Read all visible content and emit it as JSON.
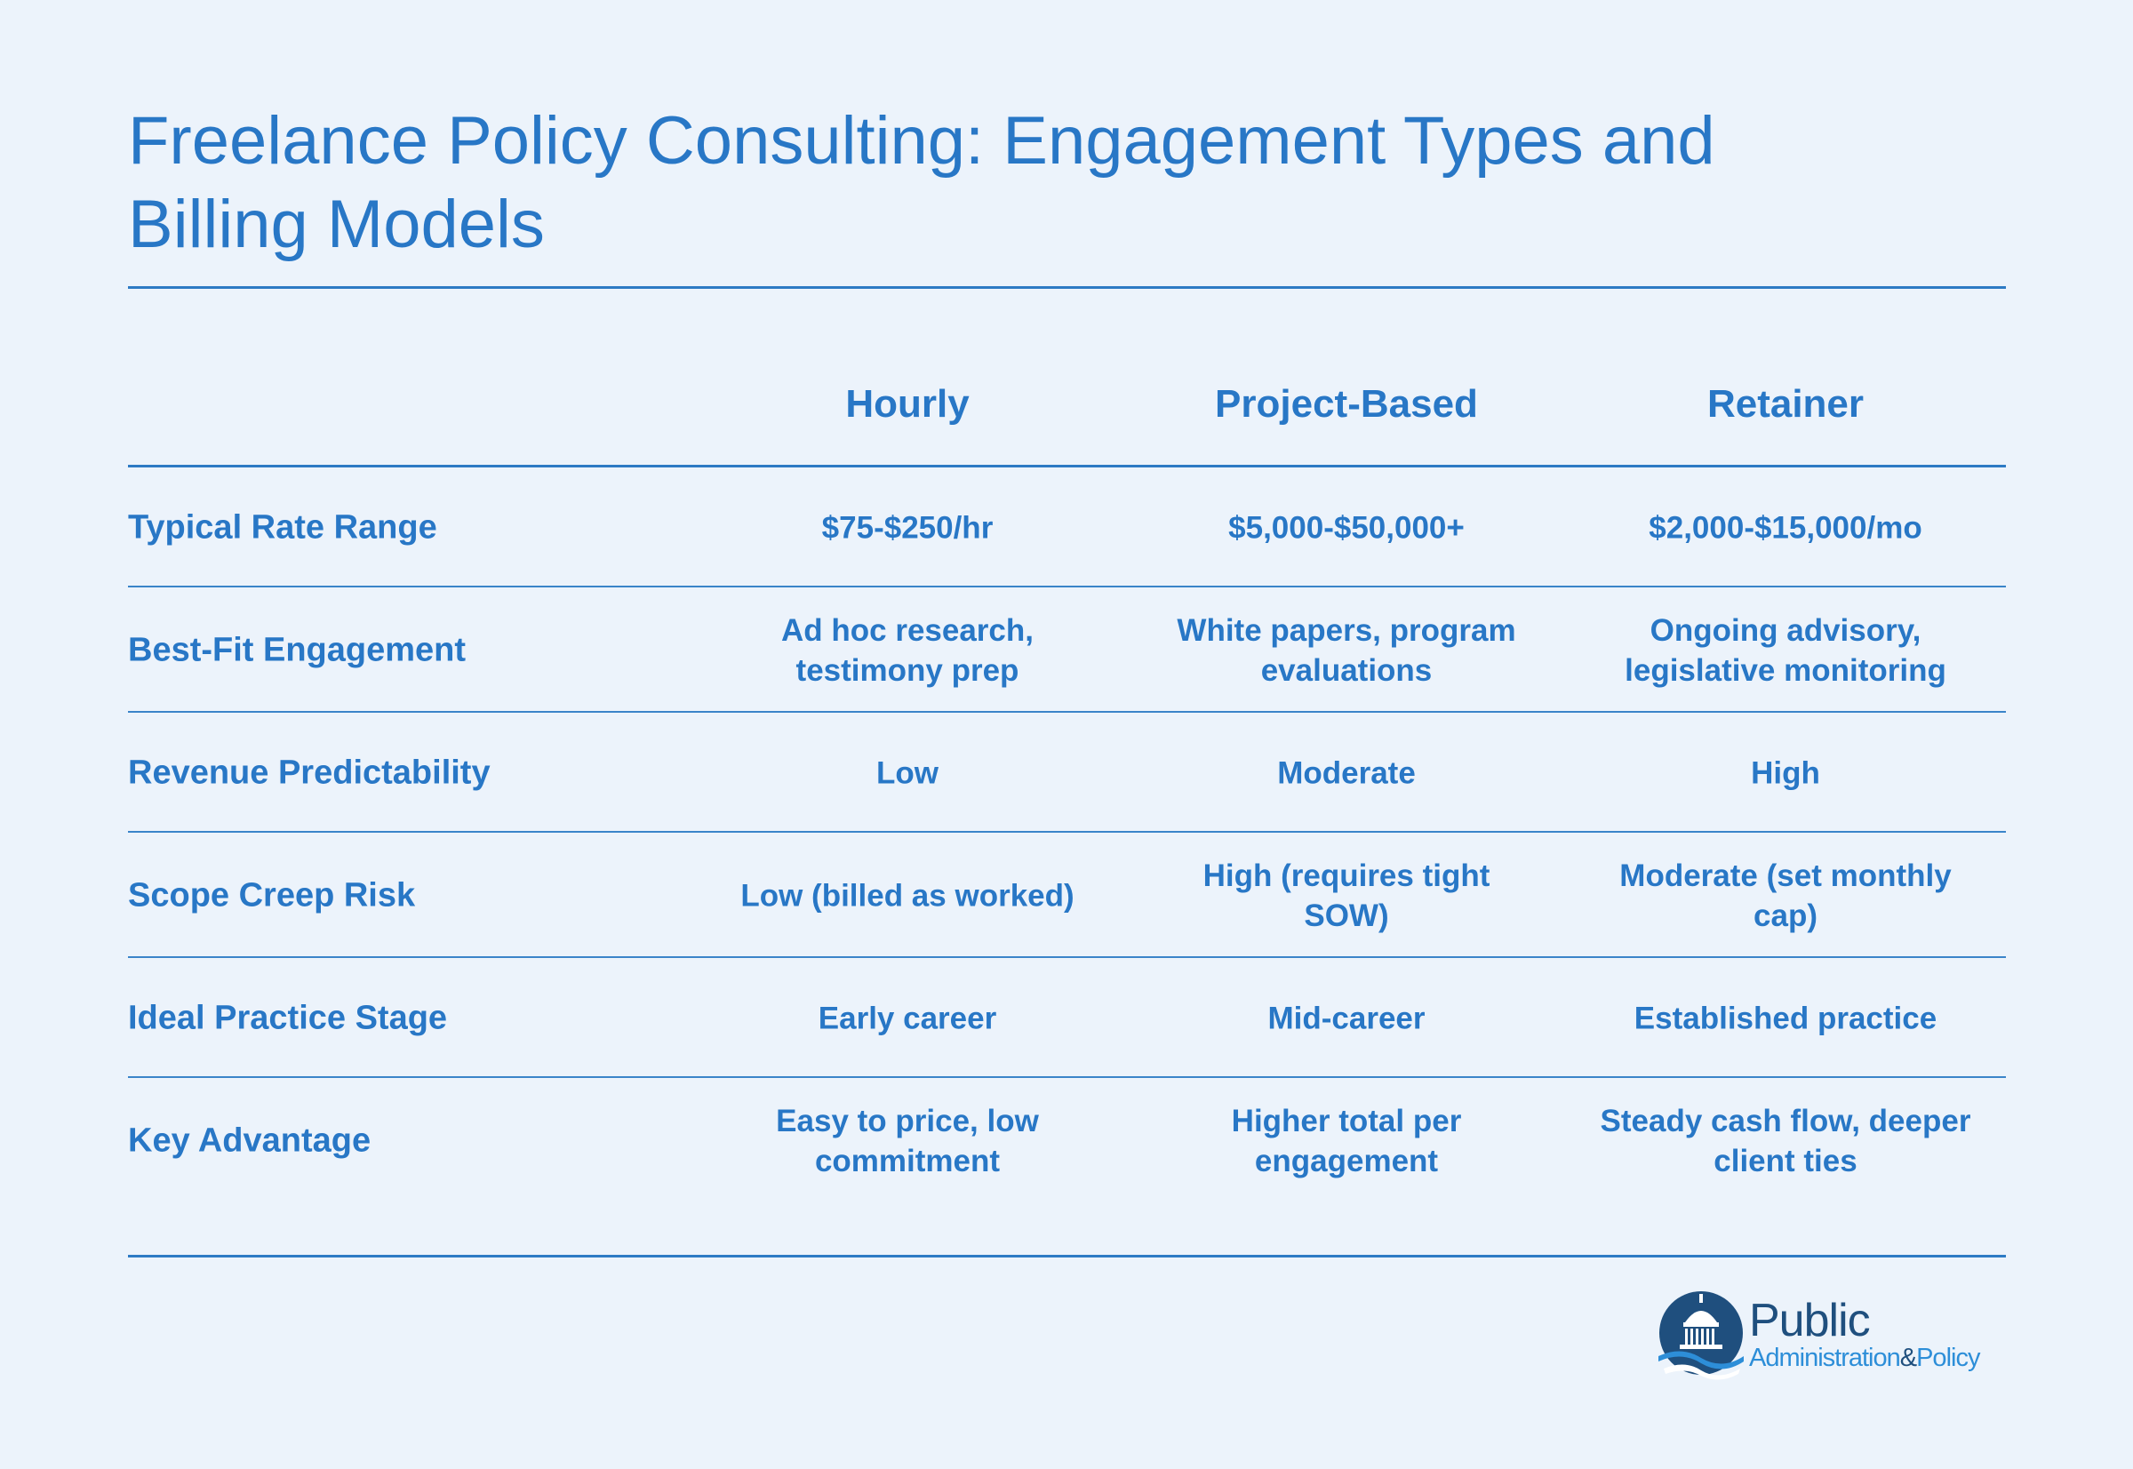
{
  "title": "Freelance Policy Consulting: Engagement Types and Billing Models",
  "columns": [
    "Hourly",
    "Project-Based",
    "Retainer"
  ],
  "rows": [
    {
      "label": "Typical Rate Range",
      "values": [
        "$75-$250/hr",
        "$5,000-$50,000+",
        "$2,000-$15,000/mo"
      ]
    },
    {
      "label": "Best-Fit Engagement",
      "values": [
        "Ad hoc research, testimony prep",
        "White papers, program evaluations",
        "Ongoing advisory, legislative monitoring"
      ]
    },
    {
      "label": "Revenue Predictability",
      "values": [
        "Low",
        "Moderate",
        "High"
      ]
    },
    {
      "label": "Scope Creep Risk",
      "values": [
        "Low (billed as worked)",
        "High (requires tight SOW)",
        "Moderate (set monthly cap)"
      ]
    },
    {
      "label": "Ideal Practice Stage",
      "values": [
        "Early career",
        "Mid-career",
        "Established practice"
      ]
    },
    {
      "label": "Key Advantage",
      "values": [
        "Easy to price, low commitment",
        "Higher total per engagement",
        "Steady cash flow, deeper client ties"
      ]
    }
  ],
  "logo": {
    "name": "Public",
    "sub_left": "Administration",
    "amp": "&",
    "sub_right": "Policy",
    "icon": "capitol-dome-icon",
    "colors": {
      "dark": "#1f4f7e",
      "light": "#2d8ed8"
    }
  }
}
